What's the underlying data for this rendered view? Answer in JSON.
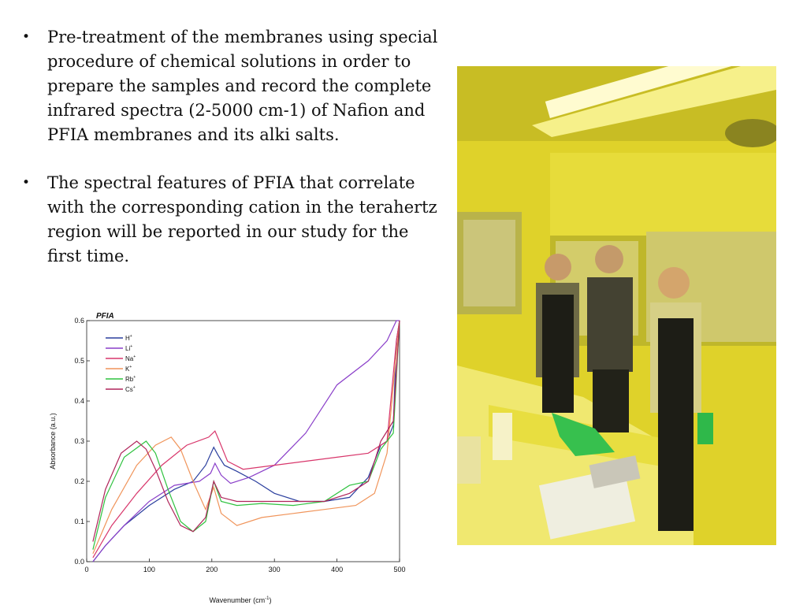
{
  "bullets": [
    "Pre-treatment of the membranes using special procedure of chemical solutions in order to prepare the samples and record the complete infrared spectra (2-5000 cm-1) of Nafion and PFIA membranes and its alki salts.",
    "The spectral features of PFIA that correlate with the corresponding cation in the terahertz region will be reported in our study for the first time."
  ],
  "chart_data": {
    "type": "line",
    "title": "PFIA",
    "xlabel": "Wavenumber (cm",
    "xlabel_sup": "-1",
    "xlabel_tail": ")",
    "ylabel": "Absorbance (a.u.)",
    "xlim": [
      0,
      500
    ],
    "ylim": [
      0,
      0.6
    ],
    "xticks": [
      0,
      100,
      200,
      300,
      400,
      500
    ],
    "yticks": [
      "0.0",
      "0.1",
      "0.2",
      "0.3",
      "0.4",
      "0.5",
      "0.6"
    ],
    "legend_position": "top-left",
    "series": [
      {
        "name": "H",
        "sup": "+",
        "color": "#2b3f9e",
        "x": [
          10,
          30,
          60,
          100,
          140,
          170,
          190,
          203,
          210,
          220,
          240,
          270,
          300,
          340,
          380,
          420,
          450,
          470,
          480,
          490,
          495,
          500
        ],
        "y": [
          0.0,
          0.04,
          0.09,
          0.14,
          0.18,
          0.2,
          0.24,
          0.285,
          0.265,
          0.24,
          0.225,
          0.2,
          0.17,
          0.15,
          0.15,
          0.16,
          0.21,
          0.29,
          0.3,
          0.34,
          0.55,
          0.6
        ]
      },
      {
        "name": "Li",
        "sup": "+",
        "color": "#8a3fc9",
        "x": [
          10,
          30,
          60,
          100,
          140,
          180,
          198,
          205,
          215,
          230,
          260,
          300,
          350,
          400,
          450,
          480,
          495,
          500
        ],
        "y": [
          0.0,
          0.04,
          0.09,
          0.15,
          0.19,
          0.2,
          0.22,
          0.245,
          0.215,
          0.195,
          0.21,
          0.24,
          0.32,
          0.44,
          0.5,
          0.55,
          0.6,
          0.6
        ]
      },
      {
        "name": "Na",
        "sup": "+",
        "color": "#d8366b",
        "x": [
          10,
          40,
          80,
          120,
          160,
          195,
          205,
          212,
          225,
          250,
          300,
          350,
          400,
          450,
          480,
          495,
          500
        ],
        "y": [
          0.01,
          0.09,
          0.17,
          0.24,
          0.29,
          0.31,
          0.325,
          0.3,
          0.25,
          0.23,
          0.24,
          0.25,
          0.26,
          0.27,
          0.3,
          0.55,
          0.6
        ]
      },
      {
        "name": "K",
        "sup": "+",
        "color": "#f0945a",
        "x": [
          10,
          40,
          80,
          110,
          135,
          150,
          170,
          190,
          203,
          215,
          240,
          280,
          330,
          380,
          430,
          460,
          480,
          495,
          500
        ],
        "y": [
          0.02,
          0.13,
          0.24,
          0.29,
          0.31,
          0.28,
          0.2,
          0.13,
          0.185,
          0.12,
          0.09,
          0.11,
          0.12,
          0.13,
          0.14,
          0.17,
          0.27,
          0.52,
          0.6
        ]
      },
      {
        "name": "Rb",
        "sup": "+",
        "color": "#2fc23f",
        "x": [
          10,
          30,
          60,
          95,
          110,
          130,
          150,
          170,
          190,
          203,
          215,
          240,
          280,
          330,
          380,
          420,
          450,
          470,
          490,
          500
        ],
        "y": [
          0.03,
          0.16,
          0.26,
          0.3,
          0.27,
          0.18,
          0.1,
          0.075,
          0.1,
          0.2,
          0.15,
          0.14,
          0.145,
          0.14,
          0.15,
          0.19,
          0.2,
          0.28,
          0.32,
          0.6
        ]
      },
      {
        "name": "Cs",
        "sup": "+",
        "color": "#b0245a",
        "x": [
          10,
          30,
          55,
          80,
          95,
          110,
          130,
          150,
          170,
          190,
          203,
          215,
          240,
          280,
          330,
          380,
          420,
          450,
          470,
          490,
          500
        ],
        "y": [
          0.05,
          0.18,
          0.27,
          0.3,
          0.28,
          0.23,
          0.15,
          0.09,
          0.075,
          0.11,
          0.2,
          0.16,
          0.15,
          0.15,
          0.15,
          0.15,
          0.17,
          0.2,
          0.3,
          0.35,
          0.6
        ]
      }
    ]
  }
}
